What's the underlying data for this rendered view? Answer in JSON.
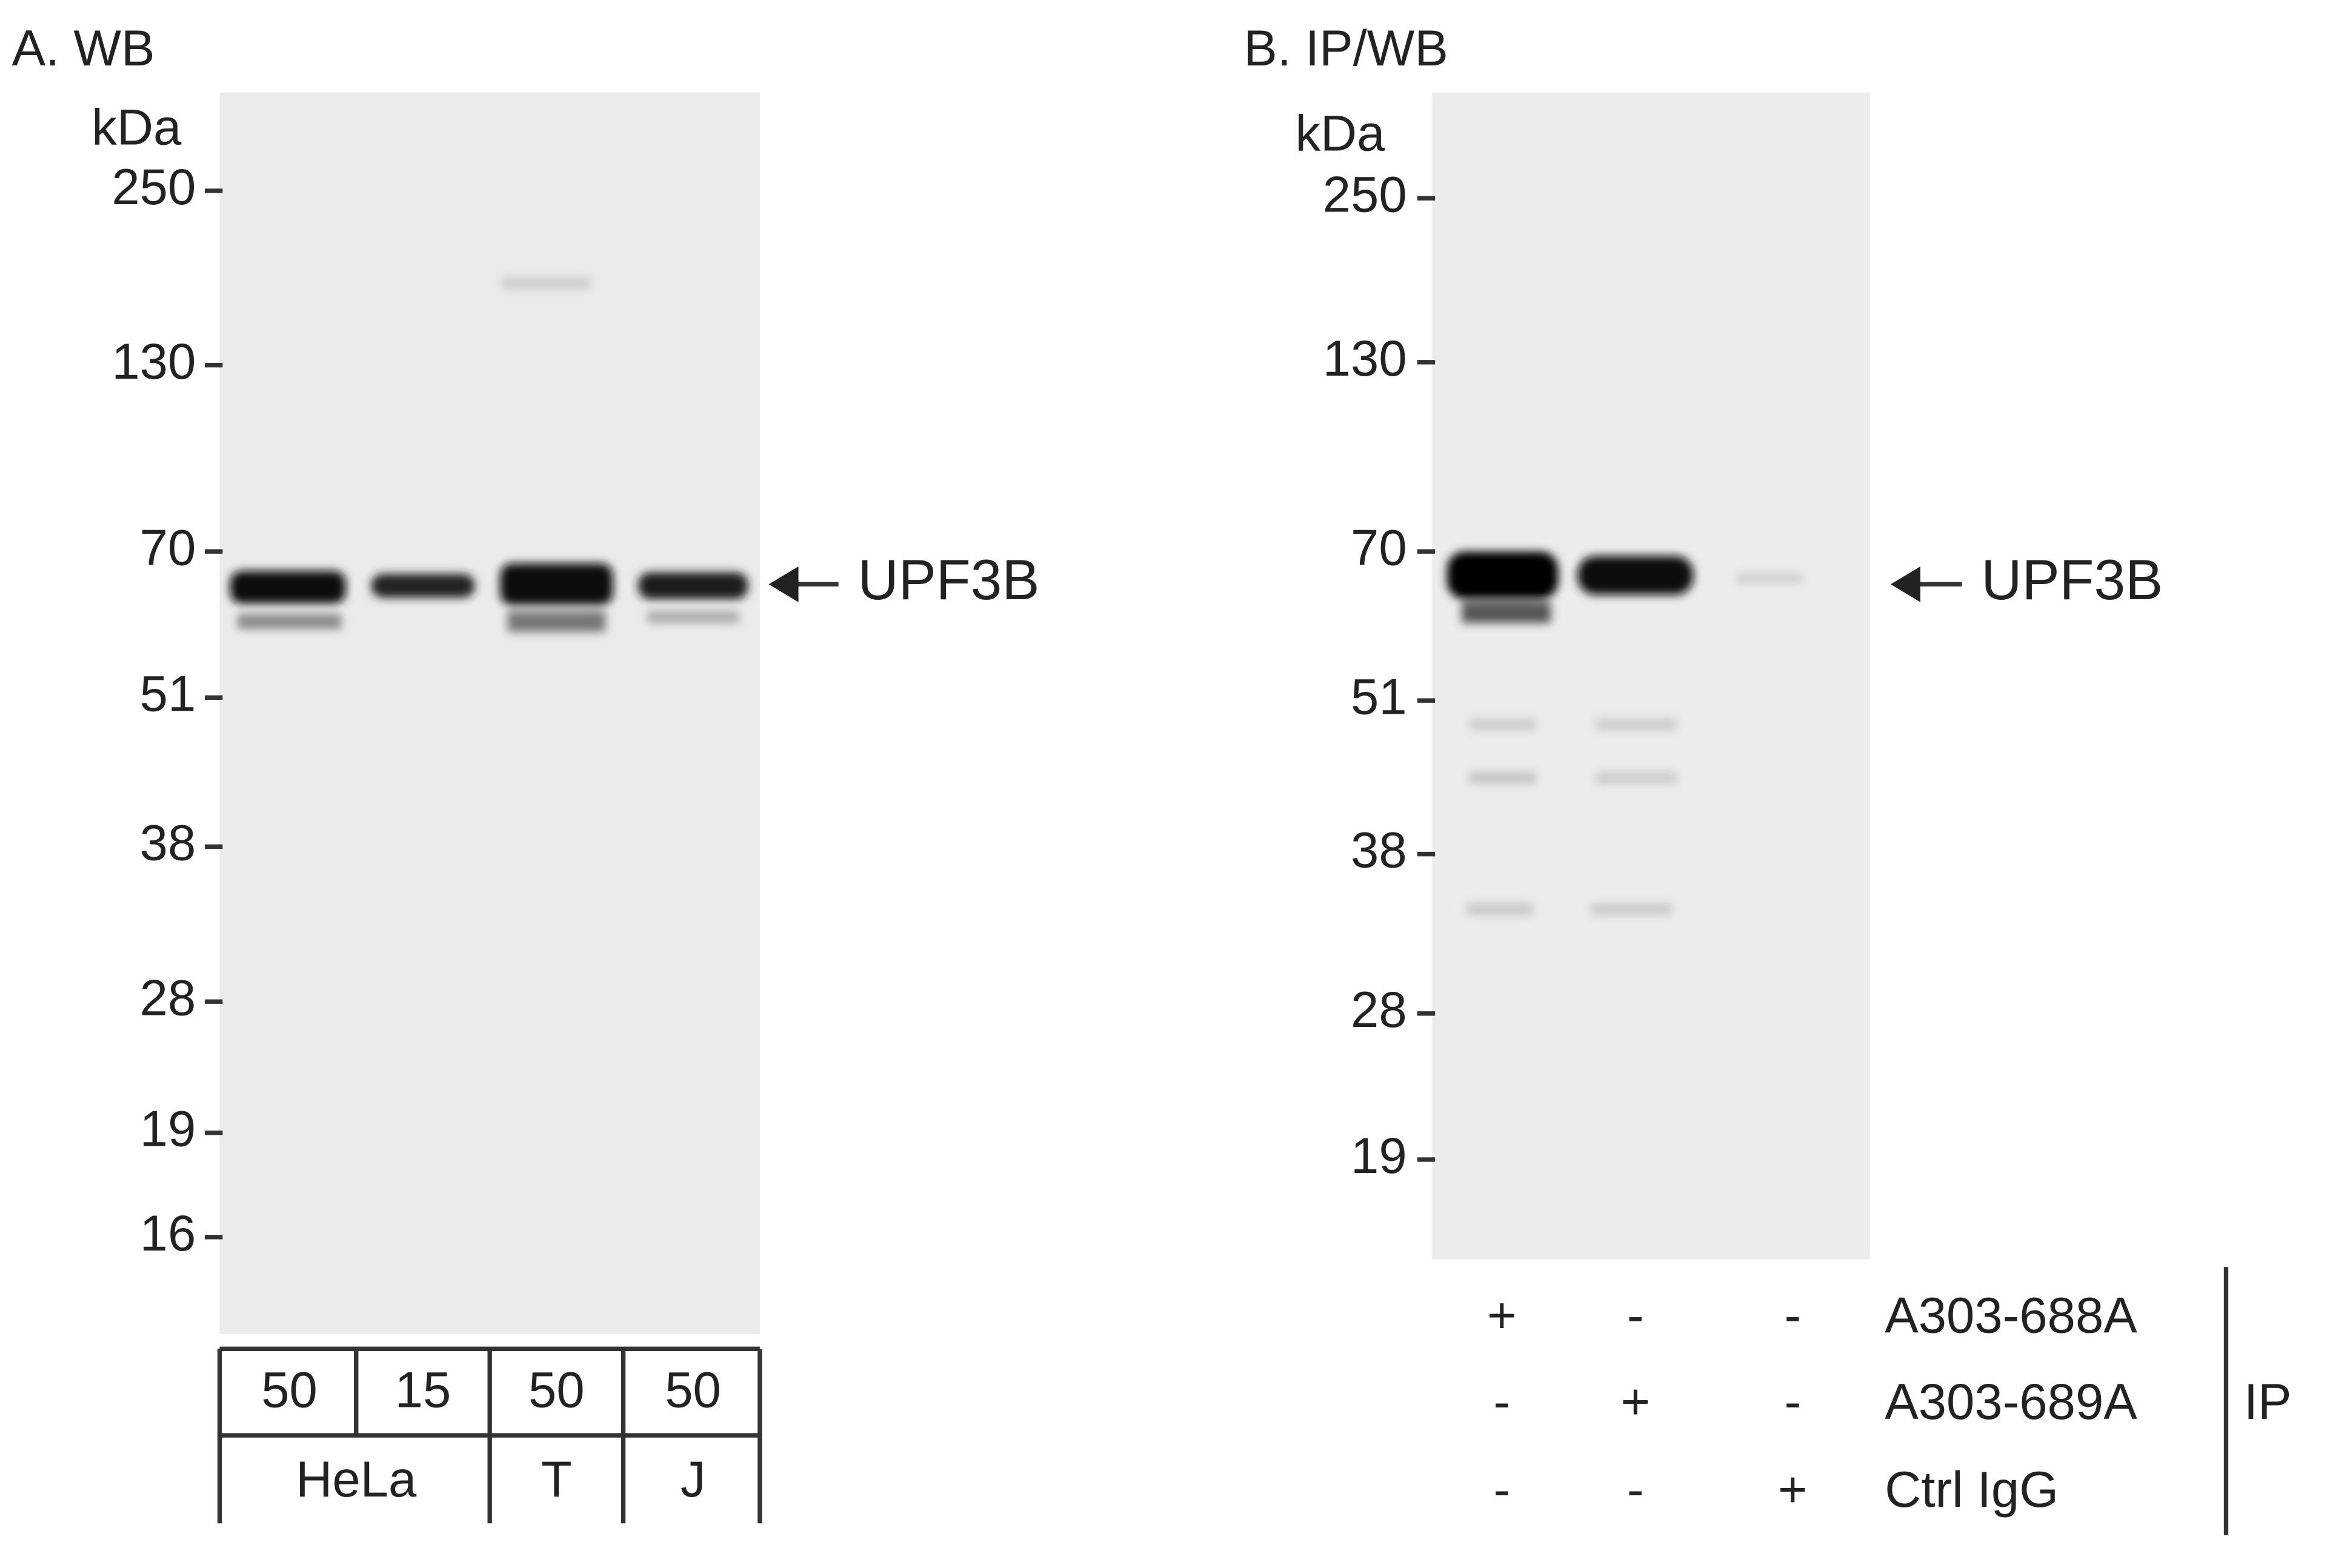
{
  "panel_a": {
    "title": "A. WB",
    "unit": "kDa",
    "markers": [
      "250",
      "130",
      "70",
      "51",
      "38",
      "28",
      "19",
      "16"
    ],
    "lane_labels": [
      "50",
      "15",
      "50",
      "50"
    ],
    "groups": [
      "HeLa",
      "T",
      "J"
    ],
    "band_label": "UPF3B"
  },
  "panel_b": {
    "title": "B. IP/WB",
    "unit": "kDa",
    "markers": [
      "250",
      "130",
      "70",
      "51",
      "38",
      "28",
      "19"
    ],
    "band_label": "UPF3B",
    "ip_rows": [
      {
        "label": "A303-688A",
        "marks": [
          "+",
          "-",
          "-"
        ]
      },
      {
        "label": "A303-689A",
        "marks": [
          "-",
          "+",
          "-"
        ]
      },
      {
        "label": "Ctrl IgG",
        "marks": [
          "-",
          "-",
          "+"
        ]
      }
    ],
    "ip_label": "IP"
  }
}
